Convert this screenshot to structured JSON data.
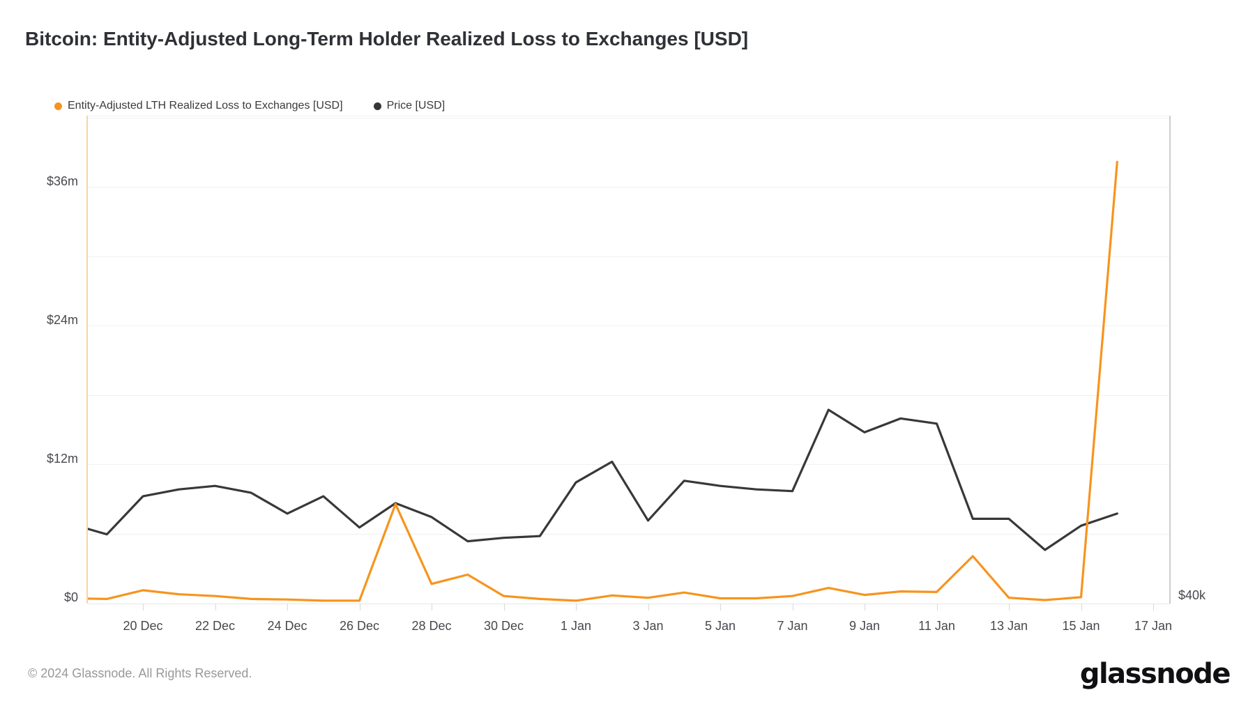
{
  "title": "Bitcoin: Entity-Adjusted Long-Term Holder Realized Loss to Exchanges [USD]",
  "legend": [
    {
      "label": "Entity-Adjusted LTH Realized Loss to Exchanges [USD]",
      "color": "#f7941d"
    },
    {
      "label": "Price [USD]",
      "color": "#363636"
    }
  ],
  "footer": {
    "copyright": "© 2024 Glassnode. All Rights Reserved.",
    "brand": "glassnode"
  },
  "colors": {
    "loss_line": "#f7941d",
    "price_line": "#383838",
    "left_axis_line": "#fbd3a1",
    "right_axis_line": "#cdcdcf",
    "gridline": "#f0f0f1",
    "tick": "#d8d8da",
    "axis_text": "#47484d",
    "background": "#ffffff"
  },
  "chart_data": {
    "type": "line",
    "title": "Bitcoin: Entity-Adjusted Long-Term Holder Realized Loss to Exchanges [USD]",
    "grid": true,
    "legend_position": "top-left",
    "categories": [
      "18 Dec",
      "19 Dec",
      "20 Dec",
      "21 Dec",
      "22 Dec",
      "23 Dec",
      "24 Dec",
      "25 Dec",
      "26 Dec",
      "27 Dec",
      "28 Dec",
      "29 Dec",
      "30 Dec",
      "31 Dec",
      "1 Jan",
      "2 Jan",
      "3 Jan",
      "4 Jan",
      "5 Jan",
      "6 Jan",
      "7 Jan",
      "8 Jan",
      "9 Jan",
      "10 Jan",
      "11 Jan",
      "12 Jan",
      "13 Jan",
      "14 Jan",
      "15 Jan",
      "16 Jan"
    ],
    "series": [
      {
        "name": "Entity-Adjusted LTH Realized Loss to Exchanges [USD]",
        "axis": "left",
        "unit": "USD millions",
        "color": "#f7941d",
        "values": [
          0.45,
          0.4,
          1.15,
          0.8,
          0.65,
          0.4,
          0.35,
          0.25,
          0.25,
          8.6,
          1.7,
          2.5,
          0.65,
          0.4,
          0.25,
          0.7,
          0.5,
          0.95,
          0.45,
          0.45,
          0.65,
          1.35,
          0.75,
          1.05,
          1.0,
          4.1,
          0.5,
          0.3,
          0.55,
          38.2
        ]
      },
      {
        "name": "Price [USD]",
        "axis": "right",
        "unit": "USD thousands",
        "color": "#383838",
        "values": [
          42.3,
          42.0,
          43.1,
          43.3,
          43.4,
          43.2,
          42.6,
          43.1,
          42.2,
          42.9,
          42.5,
          41.8,
          41.9,
          41.95,
          43.5,
          44.1,
          42.4,
          43.55,
          43.4,
          43.3,
          43.25,
          45.6,
          44.95,
          45.35,
          45.2,
          42.45,
          42.45,
          41.55,
          42.25,
          42.6
        ]
      }
    ],
    "left_axis": {
      "min": 0,
      "max": 42.2,
      "gridline_step": 6,
      "tick_labels": [
        {
          "label": "$0",
          "value": 0
        },
        {
          "label": "$12m",
          "value": 12
        },
        {
          "label": "$24m",
          "value": 24
        },
        {
          "label": "$36m",
          "value": 36
        }
      ]
    },
    "right_axis": {
      "min": 40,
      "max": 54.1,
      "visible_label": "$40k",
      "visible_label_value": 40
    },
    "x_ticks": [
      {
        "label": "20 Dec",
        "day_index": 2
      },
      {
        "label": "22 Dec",
        "day_index": 4
      },
      {
        "label": "24 Dec",
        "day_index": 6
      },
      {
        "label": "26 Dec",
        "day_index": 8
      },
      {
        "label": "28 Dec",
        "day_index": 10
      },
      {
        "label": "30 Dec",
        "day_index": 12
      },
      {
        "label": "1 Jan",
        "day_index": 14
      },
      {
        "label": "3 Jan",
        "day_index": 16
      },
      {
        "label": "5 Jan",
        "day_index": 18
      },
      {
        "label": "7 Jan",
        "day_index": 20
      },
      {
        "label": "9 Jan",
        "day_index": 22
      },
      {
        "label": "11 Jan",
        "day_index": 24
      },
      {
        "label": "13 Jan",
        "day_index": 26
      },
      {
        "label": "15 Jan",
        "day_index": 28
      },
      {
        "label": "17 Jan",
        "day_index": 30
      }
    ]
  }
}
